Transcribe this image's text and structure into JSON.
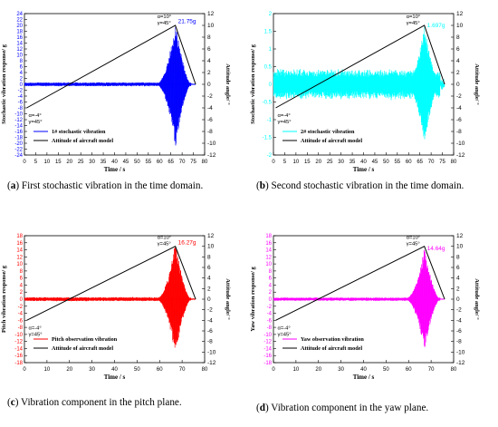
{
  "chart_data": [
    {
      "type": "line",
      "id": "a",
      "vib_color": "#0000ff",
      "xlabel": "Time / s",
      "ylabel_left": "Stochastic vibration response/ g",
      "ylabel_right": "Attitude angle/ °",
      "xlim": [
        0,
        80
      ],
      "ylim_left": [
        -24,
        24
      ],
      "ylim_right": [
        -12,
        12
      ],
      "xticks": [
        "0",
        "5",
        "10",
        "15",
        "20",
        "25",
        "30",
        "35",
        "40",
        "45",
        "50",
        "55",
        "60",
        "65",
        "70",
        "75",
        "80"
      ],
      "yticks_left": [
        "24",
        "22",
        "20",
        "18",
        "16",
        "14",
        "12",
        "10",
        "8",
        "6",
        "4",
        "2",
        "0",
        "-2",
        "-4",
        "-6",
        "-8",
        "-10",
        "-12",
        "-14",
        "-16",
        "-18",
        "-20",
        "-22",
        "-24"
      ],
      "yticks_right": [
        "12",
        "10",
        "8",
        "6",
        "4",
        "2",
        "0",
        "-2",
        "-4",
        "-6",
        "-8",
        "-10",
        "-12"
      ],
      "peak_label": "21.75g",
      "peak": {
        "x": 67,
        "y": 21.75
      },
      "base_amp": 0.7,
      "attitude": {
        "x": [
          1,
          67,
          76
        ],
        "y": [
          -4,
          10,
          0
        ]
      },
      "ann_start": [
        "α=-4°",
        "γ=45°"
      ],
      "ann_end": [
        "α=10°",
        "γ=45°"
      ],
      "legend": [
        "1# stochastic vibration",
        "Attitude of aircraft model"
      ]
    },
    {
      "type": "line",
      "id": "b",
      "vib_color": "#00ffff",
      "xlabel": "Time / s",
      "ylabel_left": "Stochastic vibration response/ g",
      "ylabel_right": "Attitude angle/ °",
      "xlim": [
        0,
        80
      ],
      "ylim_left": [
        -2,
        2
      ],
      "ylim_right": [
        -12,
        12
      ],
      "xticks": [
        "0",
        "5",
        "10",
        "15",
        "20",
        "25",
        "30",
        "35",
        "40",
        "45",
        "50",
        "55",
        "60",
        "65",
        "70",
        "75",
        "80"
      ],
      "yticks_left": [
        "2",
        "1.5",
        "1",
        "0.5",
        "0",
        "-0.5",
        "-1",
        "-1.5",
        "-2"
      ],
      "yticks_right": [
        "12",
        "10",
        "8",
        "6",
        "4",
        "2",
        "0",
        "-2",
        "-4",
        "-6",
        "-8",
        "-10",
        "-12"
      ],
      "peak_label": "1.697g",
      "peak": {
        "x": 67,
        "y": 1.697
      },
      "base_amp": 0.45,
      "attitude": {
        "x": [
          1,
          67,
          76
        ],
        "y": [
          -4,
          10,
          0
        ]
      },
      "ann_start": [
        "α=-4°",
        "γ=45°"
      ],
      "ann_end": [
        "α=10°",
        "γ=45°"
      ],
      "legend": [
        "2# stochastic vibration",
        "Attitude of aircraft model"
      ]
    },
    {
      "type": "line",
      "id": "c",
      "vib_color": "#ff0000",
      "xlabel": "Time / s",
      "ylabel_left": "Pitch vibration response/ g",
      "ylabel_right": "Attitude angle/ °",
      "xlim": [
        0,
        80
      ],
      "ylim_left": [
        -18,
        18
      ],
      "ylim_right": [
        -12,
        12
      ],
      "xticks": [
        "0",
        "10",
        "20",
        "30",
        "40",
        "50",
        "60",
        "70",
        "80"
      ],
      "yticks_left": [
        "18",
        "16",
        "14",
        "12",
        "10",
        "8",
        "6",
        "4",
        "2",
        "0",
        "-2",
        "-4",
        "-6",
        "-8",
        "-10",
        "-12",
        "-14",
        "-16",
        "-18"
      ],
      "yticks_right": [
        "12",
        "10",
        "8",
        "6",
        "4",
        "2",
        "0",
        "-2",
        "-4",
        "-6",
        "-8",
        "-10",
        "-12"
      ],
      "peak_label": "16.27g",
      "peak": {
        "x": 67,
        "y": 16.27
      },
      "base_amp": 0.6,
      "attitude": {
        "x": [
          1,
          67,
          76
        ],
        "y": [
          -4,
          10,
          0
        ]
      },
      "ann_start": [
        "α=-4°",
        "γ=45°"
      ],
      "ann_end": [
        "α=10°",
        "γ=45°"
      ],
      "legend": [
        "Pitch observation vibration",
        "Attitude of aircraft model"
      ]
    },
    {
      "type": "line",
      "id": "d",
      "vib_color": "#ff00ff",
      "xlabel": "Time / s",
      "ylabel_left": "Yaw vibration response/ g",
      "ylabel_right": "Attitude angle/ °",
      "xlim": [
        0,
        80
      ],
      "ylim_left": [
        -18,
        18
      ],
      "ylim_right": [
        -12,
        12
      ],
      "xticks": [
        "0",
        "10",
        "20",
        "30",
        "40",
        "50",
        "60",
        "70",
        "80"
      ],
      "yticks_left": [
        "18",
        "16",
        "14",
        "12",
        "10",
        "8",
        "6",
        "4",
        "2",
        "0",
        "-2",
        "-4",
        "-6",
        "-8",
        "-10",
        "-12",
        "-14",
        "-16",
        "-18"
      ],
      "yticks_right": [
        "12",
        "10",
        "8",
        "6",
        "4",
        "2",
        "0",
        "-2",
        "-4",
        "-6",
        "-8",
        "-10",
        "-12"
      ],
      "peak_label": "14.64g",
      "peak": {
        "x": 67,
        "y": 14.64
      },
      "base_amp": 0.5,
      "attitude": {
        "x": [
          1,
          67,
          76
        ],
        "y": [
          -4,
          10,
          0
        ]
      },
      "ann_start": [
        "α=-4°",
        "γ=45°"
      ],
      "ann_end": [
        "α=10°",
        "γ=45°"
      ],
      "legend": [
        "Yaw observation vibration",
        "Attitude of aircraft model"
      ]
    }
  ],
  "captions": {
    "a": {
      "label": "a",
      "text": "First stochastic vibration in the time domain."
    },
    "b": {
      "label": "b",
      "text": "Second stochastic vibration in the time domain."
    },
    "c": {
      "label": "c",
      "text": "Vibration component in the pitch plane."
    },
    "d": {
      "label": "d",
      "text": "Vibration component in the yaw plane."
    }
  }
}
